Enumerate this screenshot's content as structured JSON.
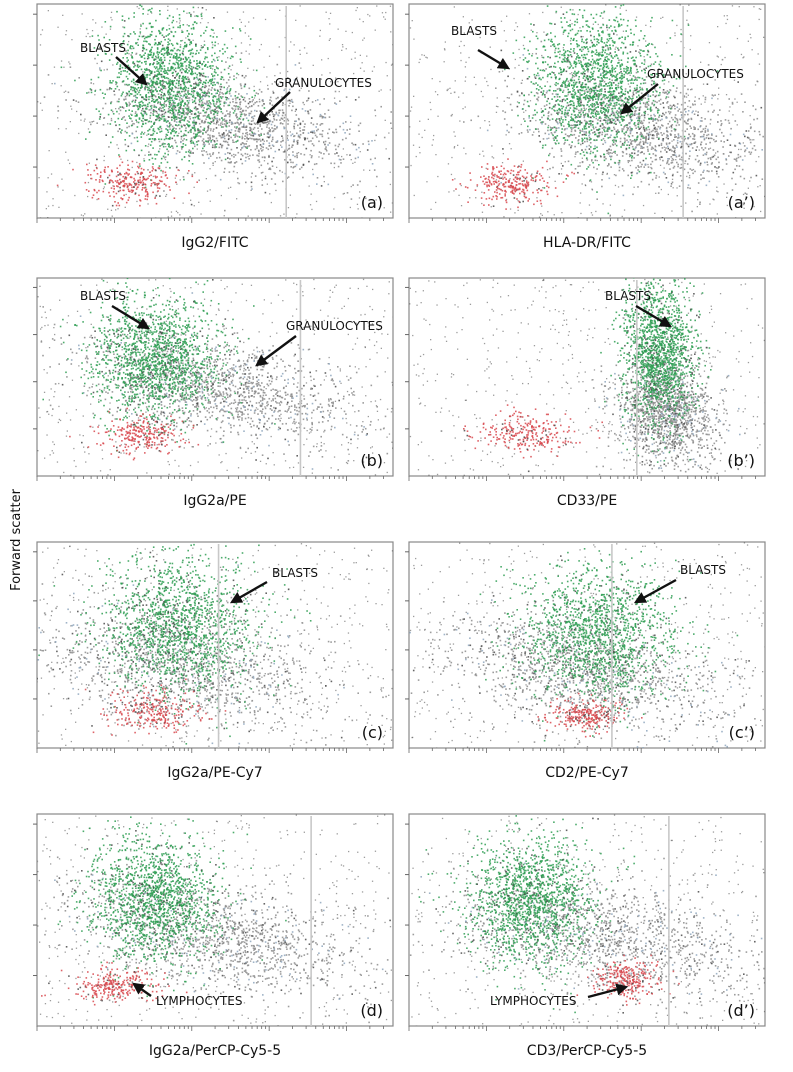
{
  "y_axis_label": "Forward scatter",
  "colors": {
    "blasts": "#2e9e52",
    "granulocytes": "#8c8c8c",
    "granulocytes_tint": "#8ea6bd",
    "lymphocytes": "#d8484e",
    "debris": "#4a4a4a",
    "gate_line": "#c8c8c8"
  },
  "chart_data": [
    {
      "type": "scatter",
      "panel_label": "(a)",
      "xlabel": "IgG2/FITC",
      "ylabel": "Forward scatter",
      "annotations": [
        {
          "text": "BLASTS",
          "target": "blasts"
        },
        {
          "text": "GRANULOCYTES",
          "target": "granulocytes"
        }
      ],
      "populations": [
        {
          "name": "blasts",
          "color": "#2e9e52",
          "center": [
            0.37,
            0.63
          ],
          "spread": [
            0.085,
            0.16
          ]
        },
        {
          "name": "granulocytes",
          "color": "#8c8c8c",
          "center": [
            0.55,
            0.45
          ],
          "spread": [
            0.12,
            0.1
          ]
        },
        {
          "name": "lymphocytes",
          "color": "#d8484e",
          "center": [
            0.27,
            0.17
          ],
          "spread": [
            0.06,
            0.045
          ]
        }
      ],
      "gate_x": 0.7
    },
    {
      "type": "scatter",
      "panel_label": "(a’)",
      "xlabel": "HLA-DR/FITC",
      "ylabel": "Forward scatter",
      "annotations": [
        {
          "text": "BLASTS",
          "target": "blasts"
        },
        {
          "text": "GRANULOCYTES",
          "target": "granulocytes"
        }
      ],
      "populations": [
        {
          "name": "blasts",
          "color": "#2e9e52",
          "center": [
            0.52,
            0.63
          ],
          "spread": [
            0.09,
            0.16
          ]
        },
        {
          "name": "granulocytes",
          "color": "#8c8c8c",
          "center": [
            0.64,
            0.42
          ],
          "spread": [
            0.12,
            0.11
          ]
        },
        {
          "name": "lymphocytes",
          "color": "#d8484e",
          "center": [
            0.29,
            0.17
          ],
          "spread": [
            0.06,
            0.045
          ]
        }
      ],
      "gate_x": 0.77
    },
    {
      "type": "scatter",
      "panel_label": "(b)",
      "xlabel": "IgG2a/PE",
      "ylabel": "Forward scatter",
      "annotations": [
        {
          "text": "BLASTS",
          "target": "blasts"
        },
        {
          "text": "GRANULOCYTES",
          "target": "granulocytes"
        }
      ],
      "populations": [
        {
          "name": "blasts",
          "color": "#2e9e52",
          "center": [
            0.33,
            0.6
          ],
          "spread": [
            0.09,
            0.15
          ]
        },
        {
          "name": "granulocytes",
          "color": "#8c8c8c",
          "center": [
            0.52,
            0.44
          ],
          "spread": [
            0.13,
            0.11
          ]
        },
        {
          "name": "lymphocytes",
          "color": "#d8484e",
          "center": [
            0.29,
            0.21
          ],
          "spread": [
            0.06,
            0.045
          ]
        }
      ],
      "gate_x": 0.74
    },
    {
      "type": "scatter",
      "panel_label": "(b’)",
      "xlabel": "CD33/PE",
      "ylabel": "Forward scatter",
      "annotations": [
        {
          "text": "BLASTS",
          "target": "blasts"
        }
      ],
      "populations": [
        {
          "name": "blasts",
          "color": "#2e9e52",
          "center": [
            0.7,
            0.62
          ],
          "spread": [
            0.05,
            0.18
          ]
        },
        {
          "name": "granulocytes",
          "color": "#8c8c8c",
          "center": [
            0.72,
            0.33
          ],
          "spread": [
            0.05,
            0.13
          ]
        },
        {
          "name": "lymphocytes",
          "color": "#d8484e",
          "center": [
            0.33,
            0.22
          ],
          "spread": [
            0.07,
            0.05
          ]
        }
      ],
      "gate_x": 0.64
    },
    {
      "type": "scatter",
      "panel_label": "(c)",
      "xlabel": "IgG2a/PE-Cy7",
      "ylabel": "Forward scatter",
      "annotations": [
        {
          "text": "BLASTS",
          "target": "blasts"
        }
      ],
      "populations": [
        {
          "name": "blasts",
          "color": "#2e9e52",
          "center": [
            0.4,
            0.6
          ],
          "spread": [
            0.11,
            0.17
          ]
        },
        {
          "name": "granulocytes",
          "color": "#8c8c8c",
          "center": [
            0.4,
            0.4
          ],
          "spread": [
            0.14,
            0.14
          ]
        },
        {
          "name": "lymphocytes",
          "color": "#d8484e",
          "center": [
            0.32,
            0.18
          ],
          "spread": [
            0.07,
            0.05
          ]
        }
      ],
      "gate_x": 0.51
    },
    {
      "type": "scatter",
      "panel_label": "(c’)",
      "xlabel": "CD2/PE-Cy7",
      "ylabel": "Forward scatter",
      "annotations": [
        {
          "text": "BLASTS",
          "target": "blasts"
        }
      ],
      "populations": [
        {
          "name": "blasts",
          "color": "#2e9e52",
          "center": [
            0.53,
            0.56
          ],
          "spread": [
            0.11,
            0.17
          ]
        },
        {
          "name": "granulocytes",
          "color": "#8c8c8c",
          "center": [
            0.49,
            0.38
          ],
          "spread": [
            0.14,
            0.13
          ]
        },
        {
          "name": "lymphocytes",
          "color": "#d8484e",
          "center": [
            0.5,
            0.17
          ],
          "spread": [
            0.05,
            0.04
          ]
        }
      ],
      "gate_x": 0.57
    },
    {
      "type": "scatter",
      "panel_label": "(d)",
      "xlabel": "IgG2a/PerCP-Cy5-5",
      "ylabel": "Forward scatter",
      "annotations": [
        {
          "text": "LYMPHOCYTES",
          "target": "lymphocytes"
        }
      ],
      "populations": [
        {
          "name": "blasts",
          "color": "#2e9e52",
          "center": [
            0.33,
            0.6
          ],
          "spread": [
            0.09,
            0.15
          ]
        },
        {
          "name": "granulocytes",
          "color": "#8c8c8c",
          "center": [
            0.52,
            0.42
          ],
          "spread": [
            0.15,
            0.11
          ]
        },
        {
          "name": "lymphocytes",
          "color": "#d8484e",
          "center": [
            0.22,
            0.19
          ],
          "spread": [
            0.06,
            0.04
          ]
        }
      ],
      "gate_x": 0.77
    },
    {
      "type": "scatter",
      "panel_label": "(d’)",
      "xlabel": "CD3/PerCP-Cy5-5",
      "ylabel": "Forward scatter",
      "annotations": [
        {
          "text": "LYMPHOCYTES",
          "target": "lymphocytes"
        }
      ],
      "populations": [
        {
          "name": "blasts",
          "color": "#2e9e52",
          "center": [
            0.34,
            0.6
          ],
          "spread": [
            0.09,
            0.15
          ]
        },
        {
          "name": "granulocytes",
          "color": "#8c8c8c",
          "center": [
            0.55,
            0.42
          ],
          "spread": [
            0.15,
            0.12
          ]
        },
        {
          "name": "lymphocytes",
          "color": "#d8484e",
          "center": [
            0.61,
            0.22
          ],
          "spread": [
            0.045,
            0.045
          ]
        }
      ],
      "gate_x": 0.73
    }
  ]
}
